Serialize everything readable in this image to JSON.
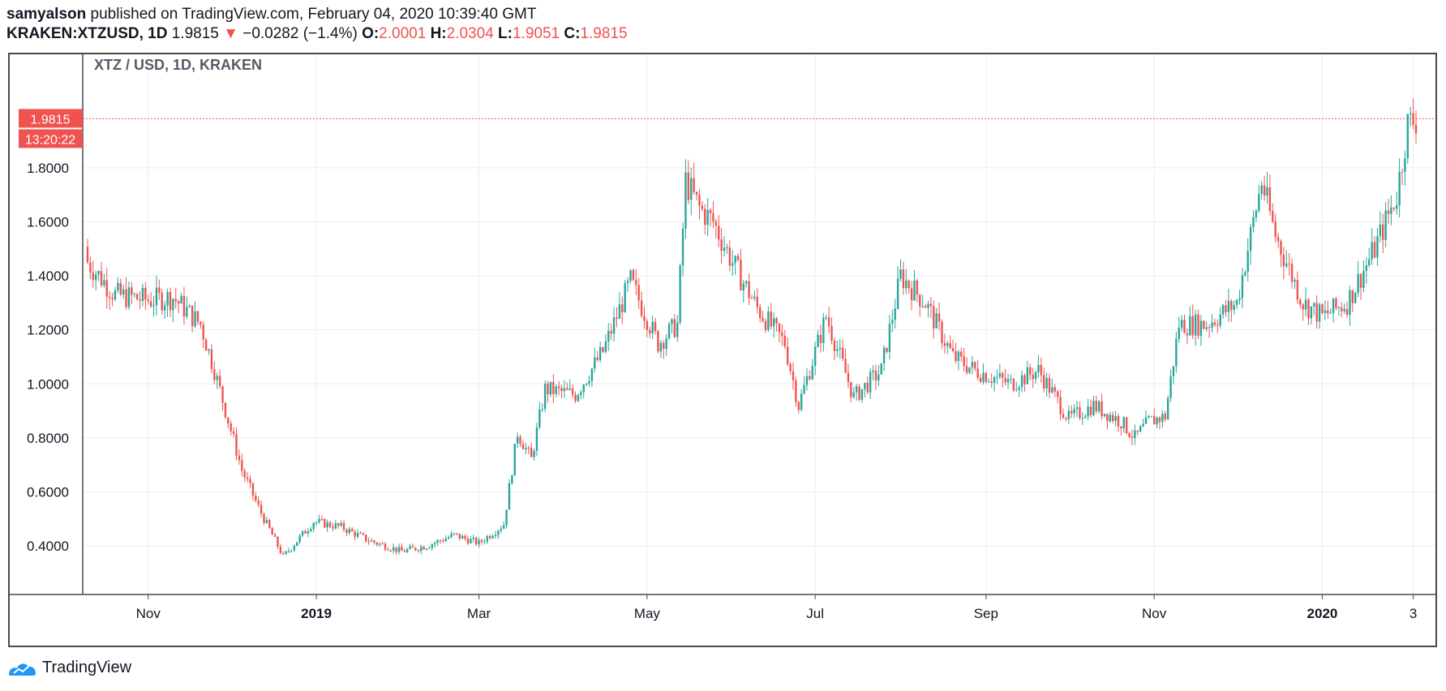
{
  "header": {
    "author": "samyalson",
    "published_text": "published on TradingView.com, February 04, 2020 10:39:40 GMT",
    "symbol": "KRAKEN:XTZUSD, 1D",
    "last_price": "1.9815",
    "change": "−0.0282 (−1.4%)",
    "o_label": "O:",
    "o_value": "2.0001",
    "h_label": "H:",
    "h_value": "2.0304",
    "l_label": "L:",
    "l_value": "1.9051",
    "c_label": "C:",
    "c_value": "1.9815"
  },
  "footer": {
    "brand": "TradingView",
    "logo_icon": "tradingview-logo-icon"
  },
  "colors": {
    "up": "#26a69a",
    "down": "#ef5350",
    "grid": "#e9eef3",
    "price_tag": "#ef5350"
  },
  "chart_data": {
    "type": "candlestick",
    "title": "XTZ / USD, 1D, KRAKEN",
    "ylim": [
      0.22,
      2.22
    ],
    "y_ticks": [
      "0.4000",
      "0.6000",
      "0.8000",
      "1.0000",
      "1.2000",
      "1.4000",
      "1.6000",
      "1.8000"
    ],
    "x_ticks": [
      "Nov",
      "2019",
      "Mar",
      "May",
      "Jul",
      "Sep",
      "Nov",
      "2020",
      "3"
    ],
    "grid": true,
    "price_tag": "1.9815",
    "countdown_tag": "13:20:22",
    "current_price": 1.9815,
    "x_range": [
      "2018-10-10",
      "2020-02-04"
    ],
    "close_series": {
      "dates": [
        "2018-10-10",
        "2018-10-20",
        "2018-11-01",
        "2018-11-10",
        "2018-11-20",
        "2018-11-25",
        "2018-12-05",
        "2018-12-12",
        "2018-12-20",
        "2018-12-31",
        "2019-01-10",
        "2019-01-20",
        "2019-02-01",
        "2019-02-10",
        "2019-02-20",
        "2019-03-01",
        "2019-03-10",
        "2019-03-15",
        "2019-03-20",
        "2019-03-25",
        "2019-04-05",
        "2019-04-15",
        "2019-04-25",
        "2019-05-05",
        "2019-05-12",
        "2019-05-15",
        "2019-05-20",
        "2019-05-25",
        "2019-06-01",
        "2019-06-10",
        "2019-06-20",
        "2019-06-25",
        "2019-07-05",
        "2019-07-15",
        "2019-07-25",
        "2019-08-01",
        "2019-08-10",
        "2019-08-20",
        "2019-08-28",
        "2019-09-10",
        "2019-09-20",
        "2019-10-01",
        "2019-10-10",
        "2019-10-20",
        "2019-10-25",
        "2019-10-30",
        "2019-11-05",
        "2019-11-10",
        "2019-11-20",
        "2019-12-01",
        "2019-12-10",
        "2019-12-15",
        "2019-12-25",
        "2020-01-01",
        "2020-01-10",
        "2020-01-20",
        "2020-01-28",
        "2020-02-01",
        "2020-02-04"
      ],
      "close": [
        1.45,
        1.33,
        1.31,
        1.32,
        1.22,
        1.05,
        0.68,
        0.52,
        0.36,
        0.49,
        0.47,
        0.42,
        0.38,
        0.4,
        0.44,
        0.41,
        0.48,
        0.82,
        0.72,
        0.98,
        0.96,
        1.12,
        1.38,
        1.15,
        1.22,
        1.75,
        1.65,
        1.6,
        1.45,
        1.28,
        1.15,
        0.92,
        1.25,
        0.95,
        1.05,
        1.4,
        1.3,
        1.1,
        1.05,
        1.0,
        1.05,
        0.87,
        0.92,
        0.86,
        0.8,
        0.86,
        0.88,
        1.22,
        1.22,
        1.3,
        1.75,
        1.55,
        1.3,
        1.25,
        1.3,
        1.5,
        1.7,
        1.96,
        1.98
      ]
    }
  }
}
